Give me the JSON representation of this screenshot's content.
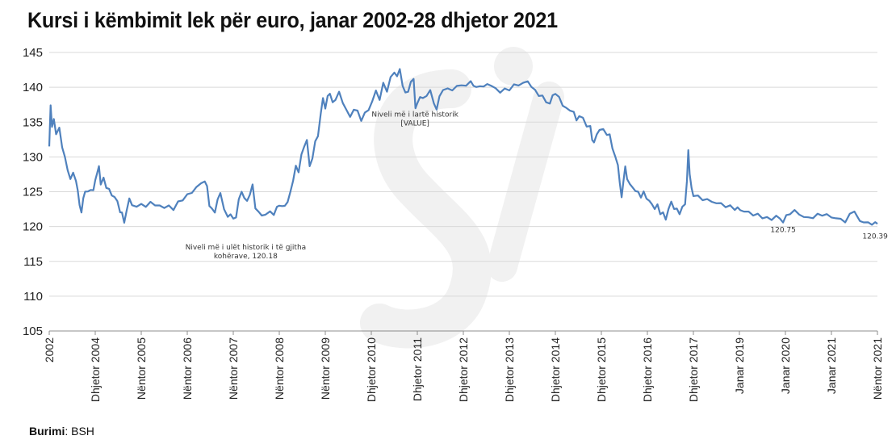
{
  "source": {
    "label": "Burimi",
    "separator": ": ",
    "value": "BSH"
  },
  "colors": {
    "line": "#4f81bd",
    "grid": "#d9d9d9",
    "axis": "#8c8c8c",
    "watermark": "#f1f1f1"
  },
  "watermark_icon": "si-logo-watermark",
  "chart_data": {
    "type": "line",
    "title": "Kursi i këmbimit lek për euro, janar 2002-28 dhjetor 2021",
    "xlabel": "",
    "ylabel": "",
    "ylim": [
      105,
      145
    ],
    "yticks": [
      105,
      110,
      115,
      120,
      125,
      130,
      135,
      140,
      145
    ],
    "x_tick_labels": [
      "2002",
      "Dhjetor 2004",
      "Nëntor 2005",
      "Nëntor 2006",
      "Nëntor 2007",
      "Nëntor 2008",
      "Nëntor 2009",
      "Dhjetor 2010",
      "Dhjetor 2011",
      "Dhjetor 2012",
      "Dhjetor 2013",
      "Dhjetor 2014",
      "Dhjetor 2015",
      "Dhjetor 2016",
      "Dhjetor 2017",
      "Janar 2019",
      "Janar 2020",
      "Janar 2021",
      "Nëntor 2021"
    ],
    "grid": true,
    "legend": "none",
    "annotations": [
      {
        "text_lines": [
          "Niveli më i lartë historik",
          "[VALUE]"
        ],
        "x_index": 7.95,
        "y": 135.8
      },
      {
        "text_lines": [
          "Niveli më i ulët historik i të gjitha",
          "kohërave, 120.18"
        ],
        "x_index": 4.27,
        "y": 116.7
      },
      {
        "text_lines": [
          "120.75"
        ],
        "x_index": 15.95,
        "y": 119.2
      },
      {
        "text_lines": [
          "120.39"
        ],
        "x_index": 17.95,
        "y": 118.3
      }
    ],
    "series": [
      {
        "points": [
          [
            0.0,
            131.5
          ],
          [
            0.03,
            137.3
          ],
          [
            0.06,
            134.5
          ],
          [
            0.1,
            135.2
          ],
          [
            0.15,
            133.5
          ],
          [
            0.22,
            134.0
          ],
          [
            0.28,
            131.5
          ],
          [
            0.34,
            130.0
          ],
          [
            0.4,
            128.0
          ],
          [
            0.46,
            127.0
          ],
          [
            0.52,
            127.5
          ],
          [
            0.58,
            126.8
          ],
          [
            0.62,
            125.0
          ],
          [
            0.66,
            123.2
          ],
          [
            0.7,
            122.0
          ],
          [
            0.74,
            124.0
          ],
          [
            0.78,
            125.2
          ],
          [
            0.84,
            124.8
          ],
          [
            0.9,
            125.5
          ],
          [
            0.96,
            125.0
          ],
          [
            1.0,
            126.8
          ],
          [
            1.04,
            127.6
          ],
          [
            1.08,
            128.6
          ],
          [
            1.12,
            126.2
          ],
          [
            1.18,
            126.8
          ],
          [
            1.24,
            125.8
          ],
          [
            1.3,
            125.2
          ],
          [
            1.36,
            124.6
          ],
          [
            1.42,
            124.2
          ],
          [
            1.48,
            123.6
          ],
          [
            1.54,
            122.2
          ],
          [
            1.58,
            121.8
          ],
          [
            1.63,
            120.8
          ],
          [
            1.68,
            122.0
          ],
          [
            1.74,
            124.2
          ],
          [
            1.8,
            123.0
          ],
          [
            1.9,
            122.8
          ],
          [
            2.0,
            123.4
          ],
          [
            2.1,
            122.6
          ],
          [
            2.2,
            123.8
          ],
          [
            2.3,
            122.8
          ],
          [
            2.4,
            123.2
          ],
          [
            2.5,
            122.6
          ],
          [
            2.6,
            123.0
          ],
          [
            2.7,
            122.5
          ],
          [
            2.8,
            123.4
          ],
          [
            2.9,
            124.0
          ],
          [
            3.0,
            124.4
          ],
          [
            3.1,
            125.0
          ],
          [
            3.2,
            125.6
          ],
          [
            3.3,
            126.2
          ],
          [
            3.38,
            126.6
          ],
          [
            3.43,
            125.6
          ],
          [
            3.48,
            123.2
          ],
          [
            3.53,
            122.4
          ],
          [
            3.6,
            122.2
          ],
          [
            3.66,
            123.8
          ],
          [
            3.72,
            124.8
          ],
          [
            3.8,
            122.6
          ],
          [
            3.88,
            121.2
          ],
          [
            3.94,
            122.0
          ],
          [
            4.0,
            120.9
          ],
          [
            4.06,
            121.5
          ],
          [
            4.12,
            123.8
          ],
          [
            4.18,
            125.0
          ],
          [
            4.24,
            124.2
          ],
          [
            4.3,
            123.5
          ],
          [
            4.36,
            124.8
          ],
          [
            4.42,
            125.8
          ],
          [
            4.48,
            122.8
          ],
          [
            4.55,
            122.0
          ],
          [
            4.62,
            121.6
          ],
          [
            4.7,
            121.8
          ],
          [
            4.8,
            122.0
          ],
          [
            4.88,
            121.9
          ],
          [
            4.95,
            122.6
          ],
          [
            5.0,
            123.2
          ],
          [
            5.06,
            122.8
          ],
          [
            5.12,
            123.0
          ],
          [
            5.18,
            123.6
          ],
          [
            5.24,
            124.8
          ],
          [
            5.3,
            126.8
          ],
          [
            5.36,
            128.5
          ],
          [
            5.42,
            128.0
          ],
          [
            5.48,
            130.2
          ],
          [
            5.54,
            131.5
          ],
          [
            5.6,
            132.5
          ],
          [
            5.66,
            128.5
          ],
          [
            5.72,
            130.0
          ],
          [
            5.78,
            132.0
          ],
          [
            5.84,
            133.2
          ],
          [
            5.9,
            136.0
          ],
          [
            5.95,
            138.5
          ],
          [
            6.0,
            137.0
          ],
          [
            6.05,
            138.6
          ],
          [
            6.1,
            139.3
          ],
          [
            6.16,
            137.6
          ],
          [
            6.22,
            138.4
          ],
          [
            6.3,
            139.2
          ],
          [
            6.38,
            137.8
          ],
          [
            6.46,
            136.8
          ],
          [
            6.54,
            135.6
          ],
          [
            6.62,
            137.0
          ],
          [
            6.7,
            136.4
          ],
          [
            6.78,
            135.4
          ],
          [
            6.86,
            136.2
          ],
          [
            6.94,
            136.8
          ],
          [
            7.02,
            138.0
          ],
          [
            7.1,
            139.4
          ],
          [
            7.18,
            138.4
          ],
          [
            7.26,
            140.4
          ],
          [
            7.34,
            139.6
          ],
          [
            7.42,
            141.3
          ],
          [
            7.5,
            142.2
          ],
          [
            7.56,
            141.6
          ],
          [
            7.62,
            142.5
          ],
          [
            7.68,
            140.4
          ],
          [
            7.74,
            139.0
          ],
          [
            7.8,
            139.6
          ],
          [
            7.86,
            140.6
          ],
          [
            7.92,
            141.3
          ],
          [
            7.96,
            137.0
          ],
          [
            8.0,
            137.6
          ],
          [
            8.06,
            138.8
          ],
          [
            8.12,
            138.2
          ],
          [
            8.2,
            139.0
          ],
          [
            8.28,
            139.4
          ],
          [
            8.36,
            137.8
          ],
          [
            8.42,
            136.8
          ],
          [
            8.48,
            138.6
          ],
          [
            8.56,
            139.8
          ],
          [
            8.66,
            139.6
          ],
          [
            8.76,
            139.8
          ],
          [
            8.86,
            140.0
          ],
          [
            8.96,
            140.4
          ],
          [
            9.06,
            140.2
          ],
          [
            9.16,
            140.8
          ],
          [
            9.22,
            140.4
          ],
          [
            9.28,
            139.8
          ],
          [
            9.36,
            140.4
          ],
          [
            9.44,
            139.9
          ],
          [
            9.52,
            140.6
          ],
          [
            9.6,
            140.2
          ],
          [
            9.7,
            139.8
          ],
          [
            9.8,
            139.4
          ],
          [
            9.9,
            139.6
          ],
          [
            10.0,
            139.8
          ],
          [
            10.1,
            140.2
          ],
          [
            10.2,
            140.4
          ],
          [
            10.3,
            140.6
          ],
          [
            10.4,
            140.8
          ],
          [
            10.48,
            140.2
          ],
          [
            10.56,
            139.4
          ],
          [
            10.64,
            139.0
          ],
          [
            10.72,
            138.6
          ],
          [
            10.8,
            138.0
          ],
          [
            10.88,
            137.6
          ],
          [
            10.94,
            138.8
          ],
          [
            11.0,
            139.2
          ],
          [
            11.08,
            138.4
          ],
          [
            11.16,
            137.6
          ],
          [
            11.24,
            136.8
          ],
          [
            11.32,
            136.8
          ],
          [
            11.4,
            136.4
          ],
          [
            11.46,
            135.2
          ],
          [
            11.52,
            136.0
          ],
          [
            11.6,
            135.4
          ],
          [
            11.68,
            134.6
          ],
          [
            11.76,
            134.2
          ],
          [
            11.8,
            132.6
          ],
          [
            11.84,
            132.0
          ],
          [
            11.9,
            133.2
          ],
          [
            11.96,
            134.0
          ],
          [
            12.04,
            133.8
          ],
          [
            12.12,
            133.4
          ],
          [
            12.18,
            133.0
          ],
          [
            12.24,
            131.4
          ],
          [
            12.3,
            130.0
          ],
          [
            12.36,
            128.8
          ],
          [
            12.4,
            126.4
          ],
          [
            12.44,
            124.0
          ],
          [
            12.48,
            126.8
          ],
          [
            12.52,
            128.4
          ],
          [
            12.56,
            127.0
          ],
          [
            12.62,
            126.0
          ],
          [
            12.68,
            125.6
          ],
          [
            12.74,
            125.2
          ],
          [
            12.8,
            124.8
          ],
          [
            12.86,
            124.4
          ],
          [
            12.92,
            124.8
          ],
          [
            12.98,
            124.2
          ],
          [
            13.04,
            123.6
          ],
          [
            13.1,
            123.2
          ],
          [
            13.16,
            122.6
          ],
          [
            13.22,
            123.0
          ],
          [
            13.28,
            122.0
          ],
          [
            13.34,
            121.8
          ],
          [
            13.4,
            121.2
          ],
          [
            13.46,
            122.4
          ],
          [
            13.52,
            123.6
          ],
          [
            13.58,
            122.6
          ],
          [
            13.64,
            122.4
          ],
          [
            13.7,
            122.0
          ],
          [
            13.76,
            122.6
          ],
          [
            13.82,
            123.4
          ],
          [
            13.86,
            126.4
          ],
          [
            13.89,
            131.0
          ],
          [
            13.92,
            127.6
          ],
          [
            13.96,
            125.4
          ],
          [
            14.0,
            124.6
          ],
          [
            14.1,
            124.2
          ],
          [
            14.2,
            124.0
          ],
          [
            14.3,
            123.8
          ],
          [
            14.4,
            123.6
          ],
          [
            14.5,
            123.4
          ],
          [
            14.6,
            123.2
          ],
          [
            14.7,
            123.0
          ],
          [
            14.8,
            122.8
          ],
          [
            14.9,
            122.6
          ],
          [
            14.96,
            122.6
          ],
          [
            15.02,
            122.4
          ],
          [
            15.1,
            122.2
          ],
          [
            15.2,
            122.0
          ],
          [
            15.3,
            121.8
          ],
          [
            15.4,
            121.6
          ],
          [
            15.5,
            121.4
          ],
          [
            15.6,
            121.2
          ],
          [
            15.7,
            121.0
          ],
          [
            15.8,
            121.6
          ],
          [
            15.88,
            121.0
          ],
          [
            15.95,
            120.8
          ],
          [
            16.02,
            121.4
          ],
          [
            16.1,
            122.0
          ],
          [
            16.2,
            122.2
          ],
          [
            16.3,
            121.8
          ],
          [
            16.4,
            121.4
          ],
          [
            16.5,
            121.2
          ],
          [
            16.6,
            121.4
          ],
          [
            16.7,
            121.6
          ],
          [
            16.8,
            121.8
          ],
          [
            16.9,
            121.6
          ],
          [
            17.0,
            121.4
          ],
          [
            17.1,
            121.2
          ],
          [
            17.2,
            121.0
          ],
          [
            17.3,
            120.8
          ],
          [
            17.4,
            121.6
          ],
          [
            17.5,
            122.4
          ],
          [
            17.55,
            121.4
          ],
          [
            17.62,
            120.9
          ],
          [
            17.7,
            120.6
          ],
          [
            17.8,
            120.5
          ],
          [
            17.88,
            120.45
          ],
          [
            17.95,
            120.39
          ],
          [
            18.0,
            120.4
          ]
        ]
      }
    ]
  }
}
